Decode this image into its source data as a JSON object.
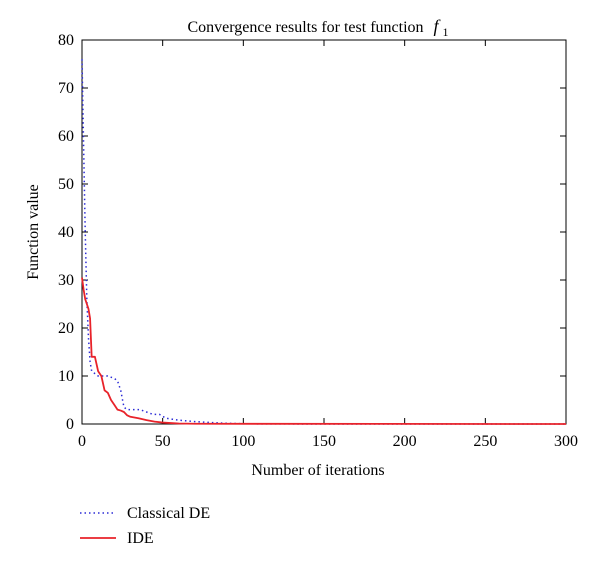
{
  "chart_data": {
    "type": "line",
    "title": "Convergence results for test function",
    "title_math": "f",
    "title_math_sub": "1",
    "xlabel": "Number of iterations",
    "ylabel": "Function value",
    "xlim": [
      0,
      300
    ],
    "ylim": [
      0,
      80
    ],
    "xticks": [
      0,
      50,
      100,
      150,
      200,
      250,
      300
    ],
    "yticks": [
      0,
      10,
      20,
      30,
      40,
      50,
      60,
      70,
      80
    ],
    "grid": false,
    "legend_position": "bottom-left, outside plot",
    "series": [
      {
        "name": "Classical DE",
        "color": "#2b2bd6",
        "style": "dotted",
        "x": [
          0,
          1,
          2,
          3,
          4,
          5,
          6,
          8,
          10,
          13,
          16,
          20,
          22,
          24,
          26,
          28,
          30,
          33,
          36,
          40,
          44,
          48,
          52,
          56,
          60,
          70,
          80,
          90,
          100,
          120,
          150,
          300
        ],
        "y": [
          76,
          58,
          40,
          26,
          18,
          13,
          11,
          10.5,
          10,
          10,
          10,
          9.5,
          9,
          7,
          3.5,
          3,
          3,
          3,
          3,
          2.5,
          2,
          2,
          1.2,
          1,
          0.8,
          0.5,
          0.3,
          0.15,
          0.05,
          0.02,
          0,
          0
        ]
      },
      {
        "name": "IDE",
        "color": "#e8232a",
        "style": "solid",
        "x": [
          0,
          1,
          2,
          3,
          4,
          5,
          6,
          7,
          8,
          10,
          12,
          14,
          16,
          18,
          20,
          22,
          24,
          26,
          28,
          30,
          35,
          40,
          45,
          50,
          55,
          60,
          70,
          300
        ],
        "y": [
          30.5,
          28,
          26,
          25,
          24,
          22,
          14,
          14,
          14,
          11,
          10,
          7,
          6.5,
          5,
          4,
          3,
          2.8,
          2.5,
          1.8,
          1.5,
          1.2,
          0.8,
          0.5,
          0.3,
          0.2,
          0.1,
          0.05,
          0
        ]
      }
    ]
  }
}
